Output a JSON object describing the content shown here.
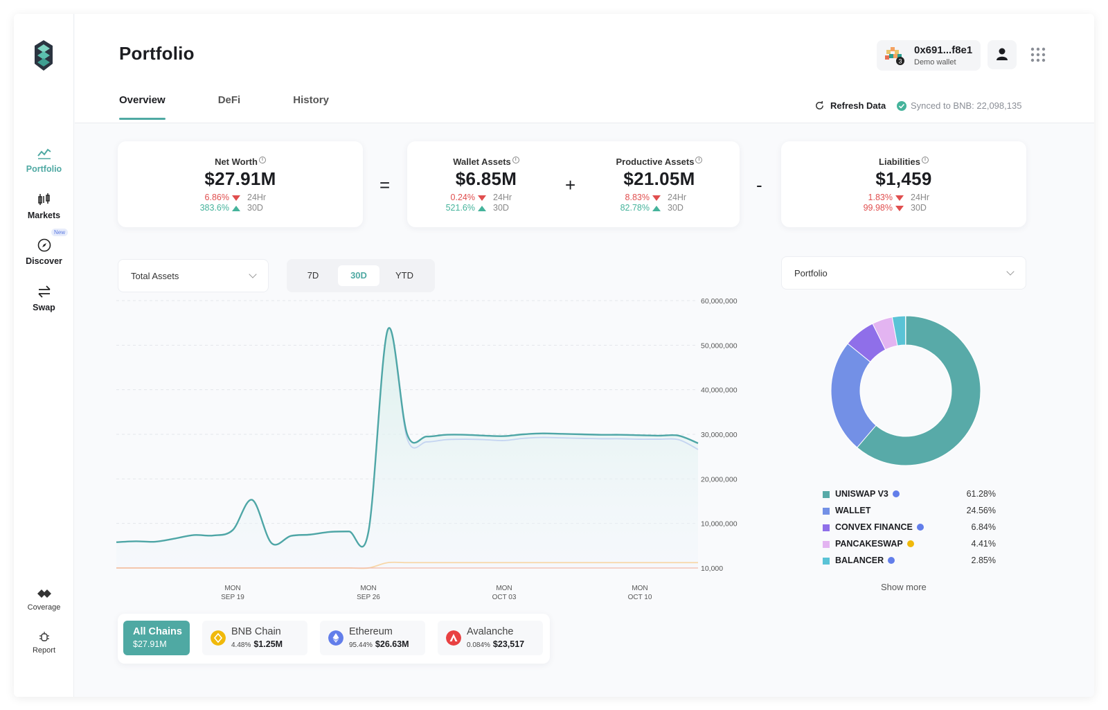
{
  "sidebar": {
    "items": [
      {
        "label": "Portfolio",
        "icon": "chart-trend-icon",
        "active": true
      },
      {
        "label": "Markets",
        "icon": "candlestick-icon"
      },
      {
        "label": "Discover",
        "icon": "compass-icon",
        "badge": "New"
      },
      {
        "label": "Swap",
        "icon": "swap-arrows-icon"
      }
    ],
    "bottom": [
      {
        "label": "Coverage",
        "icon": "coverage-icon"
      },
      {
        "label": "Report",
        "icon": "bug-icon"
      }
    ]
  },
  "header": {
    "title": "Portfolio",
    "tabs": [
      {
        "label": "Overview",
        "active": true
      },
      {
        "label": "DeFi"
      },
      {
        "label": "History"
      }
    ],
    "wallet": {
      "address": "0x691...f8e1",
      "subtitle": "Demo wallet",
      "badge": "3"
    },
    "refresh_label": "Refresh Data",
    "synced_label": "Synced to BNB: 22,098,135"
  },
  "summary": {
    "net_worth": {
      "label": "Net Worth",
      "value": "$27.91M",
      "chg24": "6.86%",
      "chg30": "383.6%"
    },
    "wallet_assets": {
      "label": "Wallet Assets",
      "value": "$6.85M",
      "chg24": "0.24%",
      "chg30": "521.6%"
    },
    "productive_assets": {
      "label": "Productive Assets",
      "value": "$21.05M",
      "chg24": "8.83%",
      "chg30": "82.78%"
    },
    "liabilities": {
      "label": "Liabilities",
      "value": "$1,459",
      "chg24": "1.83%",
      "chg30": "99.98%"
    },
    "period_24": "24Hr",
    "period_30": "30D",
    "op_equals": "=",
    "op_plus": "+",
    "op_minus": "-"
  },
  "controls": {
    "asset_select": "Total Assets",
    "ranges": [
      "7D",
      "30D",
      "YTD"
    ],
    "active_range": "30D",
    "breakdown_select": "Portfolio"
  },
  "chart_data": {
    "type": "area",
    "y_ticks": [
      "60,000,000",
      "50,000,000",
      "40,000,000",
      "30,000,000",
      "20,000,000",
      "10,000,000",
      "10,000"
    ],
    "ylim": [
      0,
      60000000
    ],
    "x_ticks": [
      [
        "MON",
        "SEP 19"
      ],
      [
        "MON",
        "SEP 26"
      ],
      [
        "MON",
        "OCT 03"
      ],
      [
        "MON",
        "OCT 10"
      ]
    ],
    "x_tick_positions": [
      6,
      13,
      20,
      27
    ],
    "xlim": [
      0,
      30
    ],
    "series": [
      {
        "values": [
          5800000,
          6000000,
          5900000,
          6600000,
          7400000,
          7300000,
          8500000,
          15300000,
          5600000,
          7200000,
          7500000,
          8100000,
          8200000,
          8100000,
          53500000,
          30000000,
          29500000,
          29900000,
          29900000,
          29700000,
          29600000,
          30000000,
          30200000,
          30100000,
          30000000,
          29900000,
          29900000,
          29800000,
          29700000,
          29700000,
          28000000
        ],
        "color": "#4ea6a6"
      },
      {
        "values": [
          5800000,
          6000000,
          5900000,
          6600000,
          7400000,
          7300000,
          8500000,
          15300000,
          5600000,
          7200000,
          7500000,
          8100000,
          8200000,
          8100000,
          53500000,
          29000000,
          28300000,
          28800000,
          28900000,
          28800000,
          28600000,
          29100000,
          29300000,
          29200000,
          29100000,
          29000000,
          29000000,
          28900000,
          28900000,
          28800000,
          26600000
        ],
        "color": "#c4d4f1"
      },
      {
        "values": [
          10000,
          10000,
          10000,
          10000,
          10000,
          10000,
          10000,
          10000,
          10000,
          10000,
          10000,
          10000,
          10000,
          10000,
          1200000,
          1200000,
          1200000,
          1200000,
          1200000,
          1200000,
          1200000,
          1200000,
          1200000,
          1200000,
          1200000,
          1200000,
          1200000,
          1200000,
          1200000,
          1200000,
          1200000
        ],
        "color": "#f7d7a8"
      }
    ]
  },
  "chains": [
    {
      "name": "All Chains",
      "value": "$27.91M",
      "active": true
    },
    {
      "name": "BNB Chain",
      "pct": "4.48%",
      "value": "$1.25M",
      "color": "#f0b90b"
    },
    {
      "name": "Ethereum",
      "pct": "95.44%",
      "value": "$26.63M",
      "color": "#627eea"
    },
    {
      "name": "Avalanche",
      "pct": "0.084%",
      "value": "$23,517",
      "color": "#e84142"
    }
  ],
  "donut": {
    "type": "pie",
    "slices": [
      {
        "name": "UNISWAP V3",
        "pct": "61.28%",
        "value": 61.28,
        "color": "#58aaa8",
        "chain_color": "#627eea"
      },
      {
        "name": "WALLET",
        "pct": "24.56%",
        "value": 24.56,
        "color": "#7390e6",
        "chain_color": null
      },
      {
        "name": "CONVEX FINANCE",
        "pct": "6.84%",
        "value": 6.84,
        "color": "#8f6fe9",
        "chain_color": "#627eea"
      },
      {
        "name": "PANCAKESWAP",
        "pct": "4.41%",
        "value": 4.41,
        "color": "#e3b4f1",
        "chain_color": "#f0b90b"
      },
      {
        "name": "BALANCER",
        "pct": "2.85%",
        "value": 2.85,
        "color": "#5ac3d6",
        "chain_color": "#627eea"
      }
    ],
    "remainder_color": "#3a7bd5",
    "show_more": "Show more"
  }
}
